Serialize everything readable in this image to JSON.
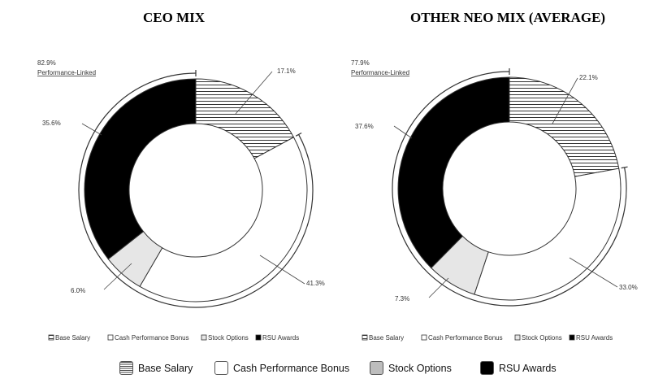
{
  "chart_data": [
    {
      "type": "donut",
      "title": "CEO MIX",
      "categories": [
        "Base Salary",
        "Cash Performance Bonus",
        "Stock Options",
        "RSU Awards"
      ],
      "values": [
        17.1,
        41.3,
        6.0,
        35.6
      ],
      "value_labels": [
        "17.1%",
        "41.3%",
        "6.0%",
        "35.6%"
      ],
      "performance_linked": {
        "value": 82.9,
        "label_value": "82.9%",
        "label": "Performance-Linked"
      },
      "legend": [
        "Base Salary",
        "Cash Performance Bonus",
        "Stock Options",
        "RSU Awards"
      ]
    },
    {
      "type": "donut",
      "title": "OTHER NEO MIX (AVERAGE)",
      "categories": [
        "Base Salary",
        "Cash Performance Bonus",
        "Stock Options",
        "RSU Awards"
      ],
      "values": [
        22.1,
        33.0,
        7.3,
        37.6
      ],
      "value_labels": [
        "22.1%",
        "33.0%",
        "7.3%",
        "37.6%"
      ],
      "performance_linked": {
        "value": 77.9,
        "label_value": "77.9%",
        "label": "Performance-Linked"
      },
      "legend": [
        "Base Salary",
        "Cash Performance Bonus",
        "Stock Options",
        "RSU Awards"
      ]
    }
  ],
  "legend": {
    "base": "Base Salary",
    "cash": "Cash Performance Bonus",
    "stock": "Stock Options",
    "rsu": "RSU Awards"
  },
  "colors": {
    "base": "#ffffff",
    "cash": "#ffffff",
    "stock": "#e6e6e6",
    "rsu": "#000000",
    "stroke": "#333333"
  }
}
